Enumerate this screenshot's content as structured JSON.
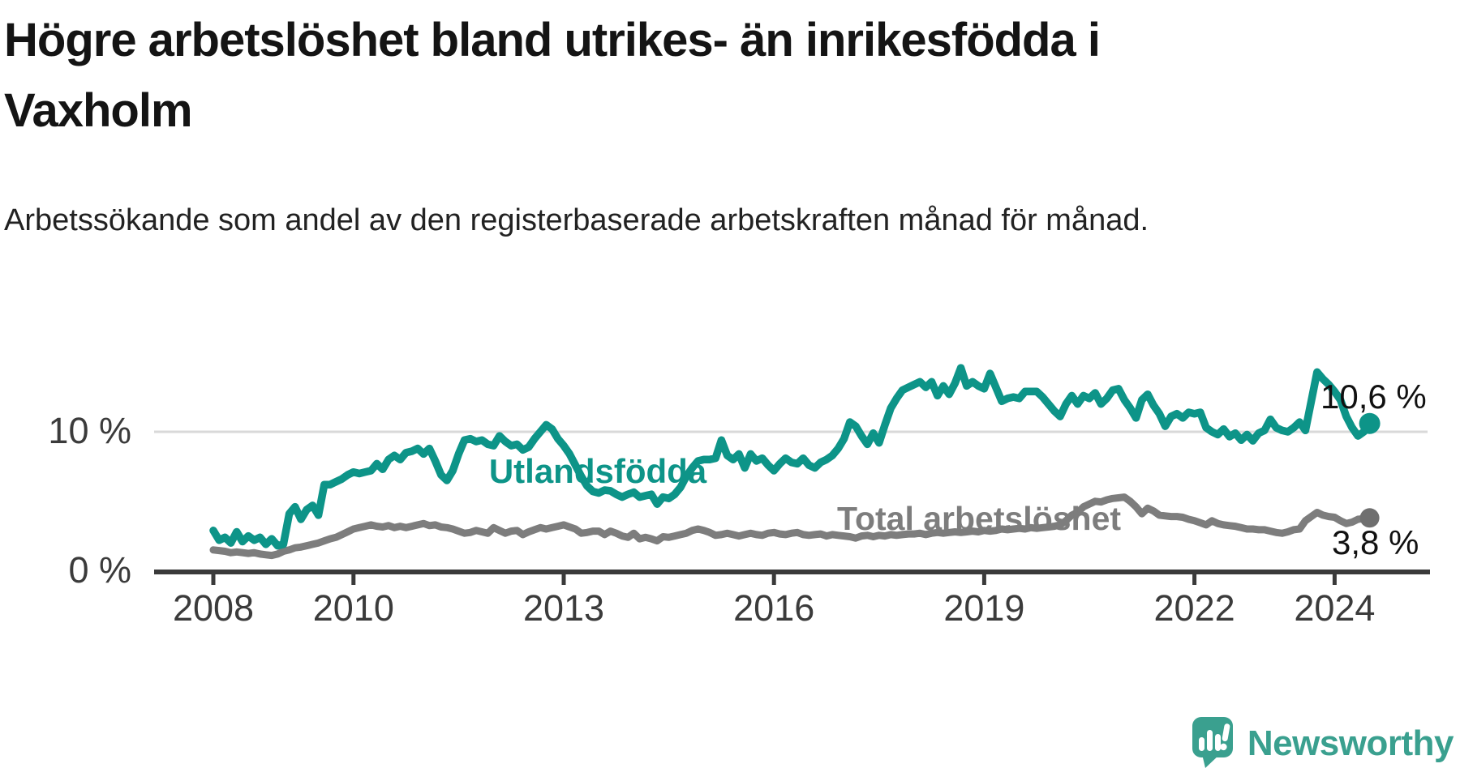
{
  "header": {
    "title": "Högre arbetslöshet bland utrikes- än inrikesfödda i Vaxholm",
    "subtitle": "Arbetssökande som andel av den registerbaserade arbetskraften månad för månad."
  },
  "colors": {
    "teal": "#0d9488",
    "gray": "#7d7d7d",
    "gray_dot": "#6f6f6f",
    "axis": "#3a3a3a",
    "grid": "#d9d9d9",
    "value_text": "#111111",
    "logo": "#3aa08f"
  },
  "chart_data": {
    "type": "line",
    "x_unit": "month",
    "x_start": "2008-01",
    "x_end": "2024-07",
    "x_tick_years": [
      2008,
      2010,
      2013,
      2016,
      2019,
      2022,
      2024
    ],
    "x_tick_labels": [
      "2008",
      "2010",
      "2013",
      "2016",
      "2019",
      "2022",
      "2024"
    ],
    "y_ticks": [
      0,
      10
    ],
    "y_tick_labels": [
      "0 %",
      "10 %"
    ],
    "ylim": [
      0,
      16
    ],
    "grid": "single-horizontal-line-at-10",
    "legend_position": "inline-labels-on-chart",
    "series": [
      {
        "name": "Utlandsfödda",
        "color": "#0d9488",
        "end_label": "10,6 %",
        "end_value": 10.6,
        "values": [
          2.9,
          2.2,
          2.4,
          2.0,
          2.8,
          2.1,
          2.5,
          2.2,
          2.4,
          1.9,
          2.3,
          1.8,
          1.9,
          4.1,
          4.6,
          3.7,
          4.4,
          4.7,
          4.0,
          6.2,
          6.2,
          6.4,
          6.6,
          6.9,
          7.1,
          7.0,
          7.1,
          7.2,
          7.7,
          7.3,
          8.0,
          8.3,
          8.0,
          8.5,
          8.6,
          8.8,
          8.4,
          8.8,
          7.9,
          6.9,
          6.5,
          7.2,
          8.4,
          9.4,
          9.5,
          9.3,
          9.4,
          9.1,
          9.0,
          9.7,
          9.3,
          9.0,
          9.1,
          8.7,
          8.9,
          9.5,
          10.0,
          10.5,
          10.2,
          9.5,
          9.0,
          8.4,
          7.6,
          6.8,
          6.1,
          5.7,
          5.6,
          5.8,
          5.75,
          5.5,
          5.3,
          5.5,
          5.65,
          5.3,
          5.4,
          5.5,
          4.8,
          5.3,
          5.2,
          5.5,
          6.0,
          6.8,
          7.4,
          7.9,
          8.0,
          8.0,
          8.1,
          9.4,
          8.3,
          8.0,
          8.4,
          7.4,
          8.4,
          7.9,
          8.1,
          7.6,
          7.2,
          7.7,
          8.1,
          7.8,
          7.7,
          8.1,
          7.6,
          7.4,
          7.8,
          8.0,
          8.3,
          8.8,
          9.5,
          10.7,
          10.4,
          9.7,
          9.1,
          9.9,
          9.2,
          10.5,
          11.7,
          12.4,
          13.0,
          13.2,
          13.4,
          13.6,
          13.2,
          13.6,
          12.6,
          13.3,
          12.7,
          13.5,
          14.6,
          13.3,
          13.6,
          13.3,
          13.1,
          14.2,
          13.2,
          12.2,
          12.4,
          12.5,
          12.4,
          12.9,
          12.9,
          12.9,
          12.5,
          12.0,
          11.5,
          11.1,
          12.0,
          12.6,
          12.0,
          12.6,
          12.4,
          12.8,
          12.0,
          12.4,
          13.0,
          13.1,
          12.3,
          11.7,
          11.0,
          12.3,
          12.7,
          11.9,
          11.3,
          10.4,
          11.1,
          11.3,
          11.0,
          11.4,
          11.3,
          11.4,
          10.3,
          10.0,
          9.8,
          10.2,
          9.65,
          9.9,
          9.4,
          9.8,
          9.35,
          9.9,
          10.1,
          10.9,
          10.3,
          10.1,
          10.0,
          10.3,
          10.7,
          10.1,
          12.2,
          14.3,
          13.8,
          13.4,
          12.9,
          12.3,
          11.1,
          10.3,
          9.7,
          10.0,
          10.6
        ]
      },
      {
        "name": "Total arbetslöshet",
        "color": "#7d7d7d",
        "end_label": "3,8 %",
        "end_value": 3.8,
        "values": [
          1.5,
          1.45,
          1.4,
          1.3,
          1.35,
          1.3,
          1.25,
          1.3,
          1.2,
          1.15,
          1.1,
          1.2,
          1.4,
          1.5,
          1.65,
          1.7,
          1.8,
          1.9,
          2.0,
          2.15,
          2.3,
          2.4,
          2.6,
          2.8,
          3.0,
          3.1,
          3.2,
          3.3,
          3.2,
          3.15,
          3.25,
          3.1,
          3.2,
          3.1,
          3.2,
          3.3,
          3.4,
          3.25,
          3.3,
          3.15,
          3.1,
          3.0,
          2.85,
          2.7,
          2.75,
          2.9,
          2.8,
          2.7,
          3.1,
          2.9,
          2.7,
          2.85,
          2.9,
          2.6,
          2.8,
          2.95,
          3.1,
          3.0,
          3.1,
          3.2,
          3.3,
          3.15,
          3.0,
          2.7,
          2.75,
          2.85,
          2.85,
          2.6,
          2.85,
          2.7,
          2.5,
          2.4,
          2.7,
          2.3,
          2.4,
          2.3,
          2.15,
          2.45,
          2.4,
          2.5,
          2.6,
          2.7,
          2.9,
          3.0,
          2.9,
          2.75,
          2.55,
          2.6,
          2.7,
          2.6,
          2.5,
          2.6,
          2.7,
          2.6,
          2.55,
          2.7,
          2.75,
          2.65,
          2.6,
          2.7,
          2.75,
          2.6,
          2.55,
          2.6,
          2.65,
          2.5,
          2.6,
          2.55,
          2.5,
          2.45,
          2.35,
          2.5,
          2.55,
          2.45,
          2.55,
          2.5,
          2.6,
          2.55,
          2.6,
          2.65,
          2.65,
          2.7,
          2.6,
          2.7,
          2.75,
          2.7,
          2.75,
          2.8,
          2.75,
          2.8,
          2.85,
          2.8,
          2.9,
          2.85,
          2.9,
          3.0,
          2.95,
          3.0,
          3.05,
          3.0,
          3.1,
          3.05,
          3.1,
          3.15,
          3.2,
          3.3,
          3.6,
          4.0,
          4.2,
          4.6,
          4.8,
          5.0,
          4.95,
          5.1,
          5.2,
          5.25,
          5.3,
          5.0,
          4.6,
          4.1,
          4.5,
          4.3,
          4.0,
          3.95,
          3.9,
          3.9,
          3.85,
          3.7,
          3.6,
          3.45,
          3.3,
          3.6,
          3.4,
          3.3,
          3.25,
          3.2,
          3.1,
          3.0,
          3.0,
          2.95,
          2.95,
          2.85,
          2.75,
          2.7,
          2.8,
          2.95,
          3.0,
          3.6,
          3.9,
          4.2,
          4.0,
          3.9,
          3.85,
          3.6,
          3.4,
          3.5,
          3.7,
          3.75,
          3.8
        ]
      }
    ]
  },
  "footer": {
    "brand": "Newsworthy"
  }
}
